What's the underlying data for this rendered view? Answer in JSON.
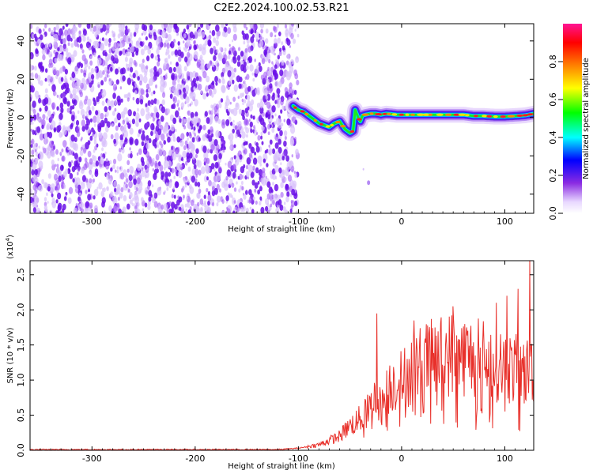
{
  "title": "C2E2.2024.100.02.53.R21",
  "chart_data": [
    {
      "type": "heatmap",
      "xlabel": "Height of straight line (km)",
      "ylabel": "Frequency (Hz)",
      "xlim": [
        -360,
        128
      ],
      "ylim": [
        -50,
        49
      ],
      "x_ticks": [
        -300,
        -200,
        -100,
        0,
        100
      ],
      "x_tick_labels": [
        "-300",
        "-200",
        "-100",
        "0",
        "100"
      ],
      "y_ticks": [
        -40,
        -20,
        0,
        20,
        40
      ],
      "y_tick_labels": [
        "-40",
        "-20",
        "0",
        "20",
        "40"
      ],
      "noise_region_x": [
        -360,
        -100
      ],
      "noise_color": "#7a1ff0",
      "signal_ridge": {
        "x": [
          -105,
          -100,
          -95,
          -90,
          -85,
          -80,
          -75,
          -70,
          -65,
          -60,
          -55,
          -50,
          -47,
          -45,
          -42,
          -40,
          -38,
          -35,
          -30,
          -25,
          -20,
          -15,
          -10,
          -5,
          0,
          10,
          20,
          30,
          40,
          50,
          60,
          70,
          80,
          90,
          100,
          110,
          120,
          128
        ],
        "y": [
          6,
          4,
          3,
          1,
          -1,
          -3,
          -4,
          -5,
          -3,
          -2,
          -6,
          -8,
          -7,
          4,
          0,
          -2,
          1,
          1.5,
          2,
          2,
          1.5,
          2,
          1.8,
          1.5,
          1.5,
          1.5,
          1.5,
          1.5,
          1.5,
          1.5,
          1.5,
          0.8,
          0.8,
          0.5,
          0.5,
          0.8,
          1.2,
          2
        ]
      },
      "colorbar": {
        "label": "Normalized spectral amplitude",
        "range": [
          0,
          1
        ],
        "ticks": [
          0,
          0.2,
          0.4,
          0.6,
          0.8
        ],
        "tick_labels": [
          "0.0",
          "0.2",
          "0.4",
          "0.6",
          "0.8"
        ],
        "colors": [
          "#ffffff",
          "#8a2be2",
          "#0000ff",
          "#00ffff",
          "#00ff00",
          "#ffff00",
          "#ff7f00",
          "#ff0000",
          "#ff1493"
        ]
      }
    },
    {
      "type": "line",
      "xlabel": "Height of straight line (km)",
      "ylabel": "SNR (10 * v/v)",
      "multiplier": "(x10",
      "multiplier_exp": "4",
      "multiplier_close": ")",
      "xlim": [
        -360,
        128
      ],
      "ylim": [
        0,
        2.7
      ],
      "x_ticks": [
        -300,
        -200,
        -100,
        0,
        100
      ],
      "x_tick_labels": [
        "-300",
        "-200",
        "-100",
        "0",
        "100"
      ],
      "y_ticks": [
        0,
        0.5,
        1.0,
        1.5,
        2.0,
        2.5
      ],
      "y_tick_labels": [
        "0.0",
        "0.5",
        "1.0",
        "1.5",
        "2.0",
        "2.5"
      ],
      "line_color": "#e8302a",
      "envelope": {
        "x": [
          -360,
          -120,
          -100,
          -80,
          -60,
          -50,
          -40,
          -30,
          -25,
          -20,
          -15,
          -10,
          0,
          10,
          20,
          30,
          40,
          50,
          60,
          70,
          80,
          90,
          100,
          110,
          120,
          128
        ],
        "y": [
          0.01,
          0.01,
          0.03,
          0.08,
          0.2,
          0.35,
          0.45,
          0.6,
          0.8,
          0.6,
          0.8,
          0.95,
          1.0,
          1.15,
          1.25,
          1.3,
          1.35,
          1.38,
          1.35,
          1.32,
          1.3,
          1.25,
          1.2,
          1.15,
          1.1,
          1.2
        ]
      },
      "spikes": [
        {
          "x": -24,
          "y": 1.95
        },
        {
          "x": 12,
          "y": 1.85
        },
        {
          "x": 50,
          "y": 2.05
        },
        {
          "x": 92,
          "y": 2.1
        },
        {
          "x": 102,
          "y": 2.2
        },
        {
          "x": 113,
          "y": 2.3
        },
        {
          "x": 124,
          "y": 2.72
        }
      ]
    }
  ]
}
